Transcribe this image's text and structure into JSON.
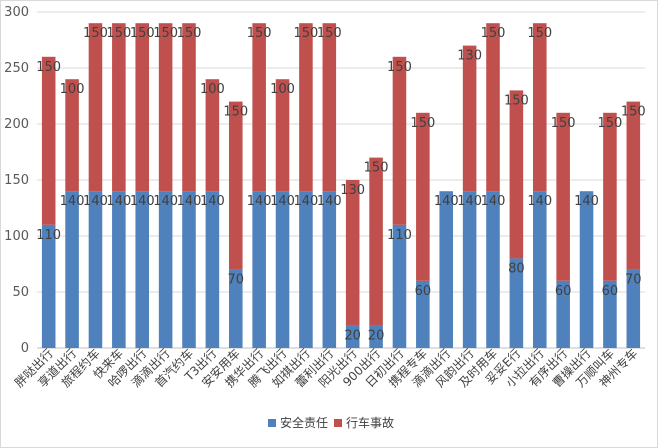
{
  "chart_data": {
    "type": "bar",
    "stacked": true,
    "title": "",
    "xlabel": "",
    "ylabel": "",
    "ylim": [
      0,
      300
    ],
    "yticks": [
      0,
      50,
      100,
      150,
      200,
      250,
      300
    ],
    "grid": true,
    "legend": "bottom",
    "categories": [
      "胖哒出行",
      "享道出行",
      "旅程约车",
      "快来车",
      "哈啰出行",
      "滴滴出行",
      "首汽约车",
      "T3出行",
      "安安用车",
      "携华出行",
      "腾飞出行",
      "如祺出行",
      "蕾利出行",
      "阳光出行",
      "900出行",
      "日初出行",
      "携程专车",
      "滴滴出行",
      "风韵出行",
      "及时用车",
      "妥妥E行",
      "小拉出行",
      "有序出行",
      "曹操出行",
      "万顺叫车",
      "神州专车"
    ],
    "series": [
      {
        "name": "安全责任",
        "color": "#4f81bd",
        "values": [
          110,
          140,
          140,
          140,
          140,
          140,
          140,
          140,
          70,
          140,
          140,
          140,
          140,
          20,
          20,
          110,
          60,
          140,
          140,
          140,
          80,
          140,
          60,
          140,
          60,
          70
        ]
      },
      {
        "name": "行车事故",
        "color": "#c0504d",
        "values": [
          150,
          100,
          150,
          150,
          150,
          150,
          150,
          100,
          150,
          150,
          100,
          150,
          150,
          130,
          150,
          150,
          150,
          0,
          130,
          150,
          150,
          150,
          150,
          0,
          150,
          150
        ]
      }
    ]
  }
}
